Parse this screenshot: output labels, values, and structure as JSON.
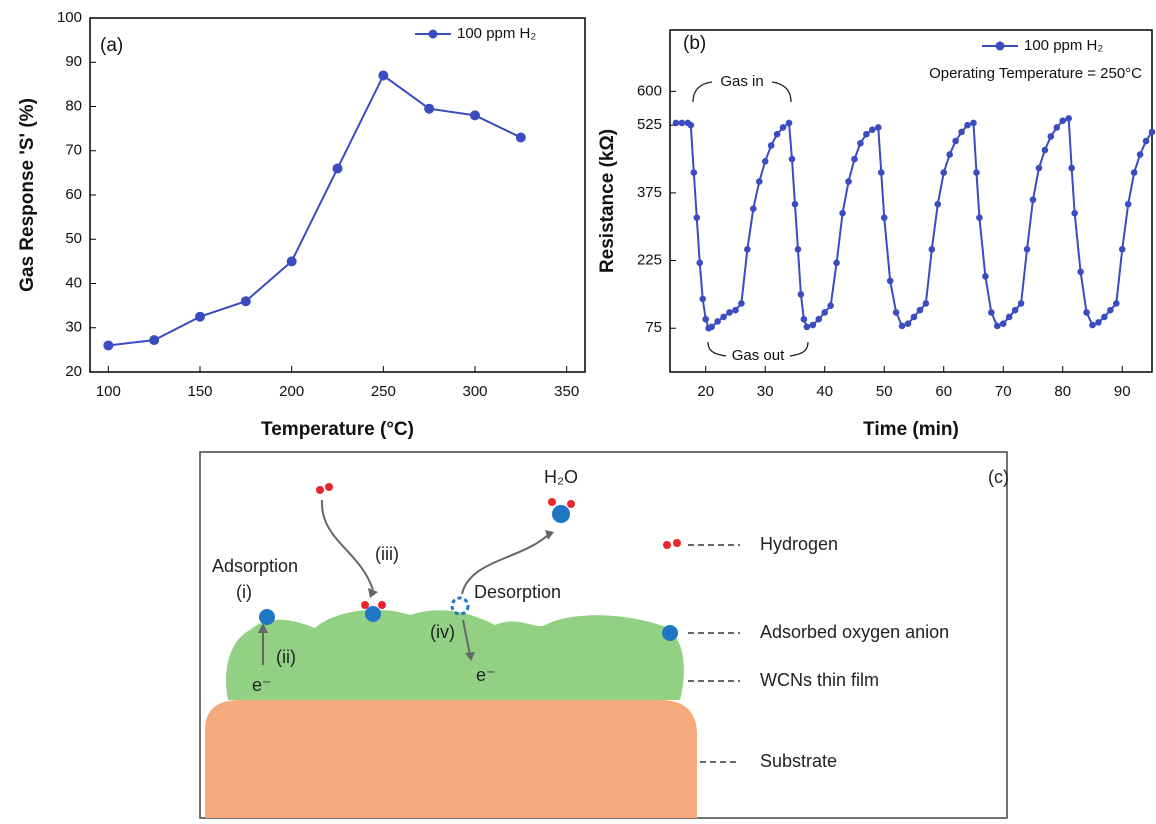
{
  "chart_data": [
    {
      "type": "line",
      "annotations": [
        "(a)"
      ],
      "x_label": "Temperature (°C)",
      "y_label": "Gas Response 'S' (%)",
      "x": [
        100,
        125,
        150,
        175,
        200,
        225,
        250,
        275,
        300,
        325
      ],
      "series": [
        {
          "name": "100 ppm H₂",
          "color": "#3a4cc0",
          "values": [
            26,
            27.2,
            32.5,
            36,
            45,
            66,
            87,
            79.5,
            78,
            73
          ]
        }
      ],
      "xlim": [
        90,
        360
      ],
      "xticks": [
        100,
        150,
        200,
        250,
        300,
        350
      ],
      "ylim": [
        20,
        100
      ],
      "yticks": [
        20,
        30,
        40,
        50,
        60,
        70,
        80,
        90,
        100
      ],
      "grid": false,
      "legend": "upper right",
      "markers": true
    },
    {
      "type": "line",
      "annotations": [
        "(b)",
        "Gas in",
        "Gas out",
        "Operating Temperature = 250°C"
      ],
      "x_label": "Time (min)",
      "y_label": "Resistance (kΩ)",
      "x": [
        15,
        16,
        17,
        17.5,
        18,
        18.5,
        19,
        19.5,
        20,
        20.5,
        21,
        22,
        23,
        24,
        25,
        26,
        27,
        28,
        29,
        30,
        31,
        32,
        33,
        34,
        34.5,
        35,
        35.5,
        36,
        36.5,
        37,
        38,
        39,
        40,
        41,
        42,
        43,
        44,
        45,
        46,
        47,
        48,
        49,
        49.5,
        50,
        51,
        52,
        53,
        54,
        55,
        56,
        57,
        58,
        59,
        60,
        61,
        62,
        63,
        64,
        65,
        65.5,
        66,
        67,
        68,
        69,
        70,
        71,
        72,
        73,
        74,
        75,
        76,
        77,
        78,
        79,
        80,
        81,
        81.5,
        82,
        83,
        84,
        85,
        86,
        87,
        88,
        89,
        90,
        91,
        92,
        93,
        94,
        95
      ],
      "series": [
        {
          "name": "100 ppm H₂",
          "color": "#3a4cc0",
          "values": [
            530,
            530,
            530,
            525,
            420,
            320,
            220,
            140,
            95,
            75,
            78,
            90,
            100,
            110,
            115,
            130,
            250,
            340,
            400,
            445,
            480,
            505,
            520,
            530,
            450,
            350,
            250,
            150,
            95,
            78,
            82,
            95,
            110,
            125,
            220,
            330,
            400,
            450,
            485,
            505,
            515,
            520,
            420,
            320,
            180,
            110,
            80,
            85,
            100,
            115,
            130,
            250,
            350,
            420,
            460,
            490,
            510,
            525,
            530,
            420,
            320,
            190,
            110,
            80,
            85,
            100,
            115,
            130,
            250,
            360,
            430,
            470,
            500,
            520,
            535,
            540,
            430,
            330,
            200,
            110,
            82,
            88,
            100,
            115,
            130,
            250,
            350,
            420,
            460,
            490,
            510
          ]
        }
      ],
      "xlim": [
        14,
        95
      ],
      "xticks": [
        20,
        30,
        40,
        50,
        60,
        70,
        80,
        90
      ],
      "ylim": [
        -22,
        736
      ],
      "yticks": [
        75,
        225,
        375,
        525,
        600
      ],
      "grid": false,
      "legend": "upper right",
      "markers": true
    }
  ],
  "diagram": {
    "panel": "(c)",
    "product": "H₂O",
    "steps": [
      "Adsorption",
      "(i)",
      "(ii)",
      "(iii)",
      "(iv)",
      "Desorption"
    ],
    "electrons": [
      "e⁻",
      "e⁻"
    ],
    "legend": [
      "Hydrogen",
      "Adsorbed oxygen anion",
      "WCNs thin film",
      "Substrate"
    ]
  }
}
